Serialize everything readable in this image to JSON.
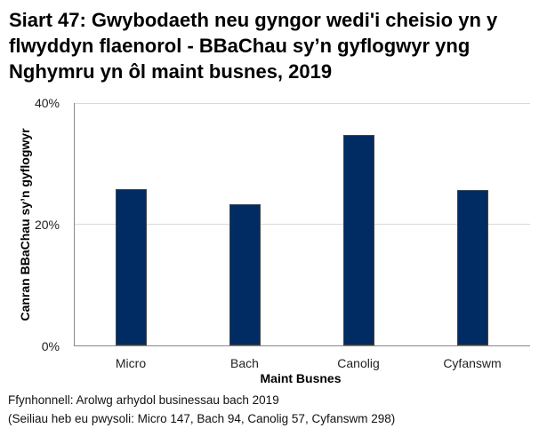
{
  "title": "Siart 47: Gwybodaeth neu gyngor wedi'i cheisio yn y flwyddyn flaenorol - BBaChau sy’n gyflogwyr yng Nghymru yn ôl maint busnes, 2019",
  "y_ticks": [
    "40%",
    "20%",
    "0%"
  ],
  "footer": {
    "source": "Ffynhonnell: Arolwg arhydol businessau bach 2019",
    "bases": "(Seiliau heb eu pwysoli: Micro 147, Bach 94, Canolig 57, Cyfanswm 298)"
  },
  "colors": {
    "bar": "#002b63",
    "grid": "#d9d9d9",
    "axis": "#888888"
  },
  "chart_data": {
    "type": "bar",
    "title": "Siart 47: Gwybodaeth neu gyngor wedi'i cheisio yn y flwyddyn flaenorol - BBaChau sy’n gyflogwyr yng Nghymru yn ôl maint busnes, 2019",
    "categories": [
      "Micro",
      "Bach",
      "Canolig",
      "Cyfanswm"
    ],
    "values": [
      25.8,
      23.3,
      34.7,
      25.7
    ],
    "xlabel": "Maint Busnes",
    "ylabel": "Canran BBaChau sy’n gyflogwyr",
    "ylim": [
      0,
      40
    ],
    "yticks": [
      0,
      20,
      40
    ],
    "ytick_labels": [
      "0%",
      "20%",
      "40%"
    ],
    "grid": true,
    "legend": null
  }
}
